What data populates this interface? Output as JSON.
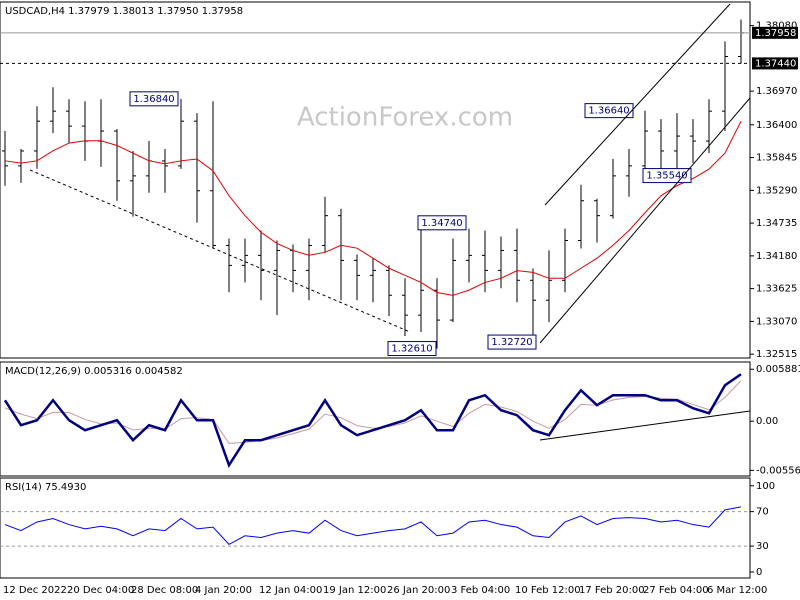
{
  "chart_data": [
    {
      "type": "ohlc",
      "title": "USDCAD,H4 1.37979 1.38013 1.37950 1.37958",
      "watermark": "ActionForex.com",
      "color": "#000000",
      "categories": [
        "12 Dec 2022",
        null,
        null,
        null,
        "20 Dec 04:00",
        null,
        null,
        null,
        "28 Dec 08:00",
        null,
        null,
        null,
        "4 Jan 20:00",
        null,
        null,
        null,
        "12 Jan 04:00",
        null,
        null,
        null,
        "19 Jan 12:00",
        null,
        null,
        null,
        "26 Jan 20:00",
        null,
        null,
        null,
        "3 Feb 04:00",
        null,
        null,
        null,
        "10 Feb 12:00",
        null,
        null,
        null,
        "17 Feb 20:00",
        null,
        null,
        null,
        "27 Feb 04:00",
        null,
        null,
        null,
        "6 Mar 12:00",
        null,
        null
      ],
      "open": [
        1.35957,
        1.35704,
        1.35957,
        1.36462,
        1.36631,
        1.36378,
        1.36125,
        1.36294,
        1.35451,
        1.35535,
        1.35788,
        1.35704,
        1.36462,
        1.35283,
        1.34356,
        1.34019,
        1.34188,
        1.33934,
        1.34272,
        1.33934,
        1.34356,
        1.34861,
        1.34103,
        1.3385,
        1.33934,
        1.33513,
        1.33176,
        1.33597,
        1.33092,
        1.34103,
        1.34188,
        1.33934,
        1.34272,
        1.33766,
        1.33429,
        1.33766,
        1.3444,
        1.35114,
        1.34861,
        1.35535,
        1.35704,
        1.36294,
        1.35957,
        1.36209,
        1.36125,
        1.36631,
        1.37557
      ],
      "high": [
        1.36294,
        1.3599,
        1.36715,
        1.37035,
        1.36833,
        1.36799,
        1.36833,
        1.36327,
        1.35957,
        1.36125,
        1.3599,
        1.3684,
        1.36597,
        1.36799,
        1.34474,
        1.34474,
        1.34609,
        1.3444,
        1.34373,
        1.34474,
        1.35182,
        1.34979,
        1.34204,
        1.34137,
        1.34019,
        1.338,
        1.3474,
        1.338,
        1.34474,
        1.34642,
        1.34609,
        1.34508,
        1.34642,
        1.33968,
        1.34272,
        1.34642,
        1.35384,
        1.35148,
        1.35822,
        1.3599,
        1.3664,
        1.36496,
        1.36597,
        1.36496,
        1.36833,
        1.3781,
        1.38181
      ],
      "low": [
        1.35367,
        1.35417,
        1.35653,
        1.3626,
        1.36091,
        1.35788,
        1.35687,
        1.35114,
        1.34844,
        1.35249,
        1.35249,
        1.35653,
        1.34743,
        1.34305,
        1.33564,
        1.33732,
        1.33429,
        1.33176,
        1.33564,
        1.33429,
        1.34238,
        1.33429,
        1.33429,
        1.33395,
        1.33159,
        1.32822,
        1.3289,
        1.3261,
        1.33058,
        1.33732,
        1.33564,
        1.33631,
        1.33395,
        1.3272,
        1.33058,
        1.33564,
        1.34305,
        1.34406,
        1.34811,
        1.35182,
        1.35586,
        1.3554,
        1.35653,
        1.35754,
        1.35923,
        1.36294,
        1.37439
      ],
      "close": [
        1.35704,
        1.35957,
        1.36462,
        1.36631,
        1.36378,
        1.36125,
        1.36294,
        1.35451,
        1.35535,
        1.35788,
        1.35704,
        1.36462,
        1.35283,
        1.34356,
        1.34019,
        1.34188,
        1.33934,
        1.34272,
        1.33934,
        1.34356,
        1.34861,
        1.34103,
        1.3385,
        1.33934,
        1.33513,
        1.33176,
        1.33597,
        1.33092,
        1.34103,
        1.34188,
        1.33934,
        1.34272,
        1.33766,
        1.33429,
        1.33766,
        1.3444,
        1.35114,
        1.34861,
        1.35535,
        1.35704,
        1.36294,
        1.35957,
        1.36209,
        1.36125,
        1.36631,
        1.37557,
        1.37958
      ],
      "ma": {
        "color": "#e00000",
        "values": [
          1.3579,
          1.3575,
          1.3579,
          1.3596,
          1.3609,
          1.3613,
          1.3613,
          1.3605,
          1.3592,
          1.3579,
          1.3574,
          1.3579,
          1.3582,
          1.3562,
          1.352,
          1.3486,
          1.3458,
          1.3439,
          1.3427,
          1.3419,
          1.3424,
          1.3436,
          1.3431,
          1.3414,
          1.3397,
          1.3385,
          1.3373,
          1.3356,
          1.3351,
          1.336,
          1.3373,
          1.338,
          1.3393,
          1.339,
          1.338,
          1.338,
          1.3397,
          1.3414,
          1.3436,
          1.3461,
          1.3491,
          1.352,
          1.3537,
          1.3549,
          1.3565,
          1.3592,
          1.3646
        ]
      },
      "price_lines": [
        {
          "value": 1.37958,
          "label": "1.37958",
          "style": "solid"
        },
        {
          "value": 1.3744,
          "label": "1.37440",
          "style": "dashed"
        }
      ],
      "annotations": [
        {
          "value": 1.3684,
          "label": "1.36840"
        },
        {
          "value": 1.3474,
          "label": "1.34740"
        },
        {
          "value": 1.3261,
          "label": "1.32610"
        },
        {
          "value": 1.3272,
          "label": "1.32720"
        },
        {
          "value": 1.3664,
          "label": "1.36640"
        },
        {
          "value": 1.3554,
          "label": "1.35540"
        }
      ],
      "ylim": [
        1.3245,
        1.3848
      ],
      "yticks": [
        {
          "value": 1.3808,
          "label": "1.38080"
        },
        {
          "value": 1.3697,
          "label": "1.36970"
        },
        {
          "value": 1.364,
          "label": "1.36400"
        },
        {
          "value": 1.35845,
          "label": "1.35845"
        },
        {
          "value": 1.3529,
          "label": "1.35290"
        },
        {
          "value": 1.34735,
          "label": "1.34735"
        },
        {
          "value": 1.3418,
          "label": "1.34180"
        },
        {
          "value": 1.33625,
          "label": "1.33625"
        },
        {
          "value": 1.3307,
          "label": "1.33070"
        },
        {
          "value": 1.32515,
          "label": "1.32515"
        }
      ]
    },
    {
      "type": "macd",
      "title": "MACD(12,26,9) 0.005316 0.004582",
      "ylim": [
        -0.0062,
        0.0067
      ],
      "yticks": [
        0.005881,
        {
          "value": 0,
          "label": "0.00"
        },
        -0.005562
      ],
      "series": [
        {
          "color": "#000080",
          "values": [
            0.00237,
            -0.00045,
            0.00011,
            0.00237,
            0.00011,
            -0.00102,
            -0.00045,
            0.00011,
            -0.00215,
            -0.00045,
            -0.00102,
            0.00237,
            0.00011,
            0.00011,
            -0.00497,
            -0.00215,
            -0.00215,
            -0.00158,
            -0.00102,
            -0.00045,
            0.00237,
            -0.00045,
            -0.00158,
            -0.00102,
            -0.00045,
            0.00011,
            0.00124,
            -0.00102,
            -0.00102,
            0.00237,
            0.00294,
            0.00124,
            0.00068,
            -0.00102,
            -0.00158,
            0.00124,
            0.0035,
            0.00181,
            0.00294,
            0.00294,
            0.00294,
            0.00237,
            0.00237,
            0.00147,
            0.0009,
            0.00407,
            0.005316
          ]
        },
        {
          "color": "#c89aa0",
          "values": [
            0.0015,
            0.0008,
            0.0003,
            0.001,
            0.001,
            0.0002,
            -0.0003,
            -0.0002,
            -0.001,
            -0.0008,
            -0.0009,
            0.0003,
            0.0004,
            0.0002,
            -0.0025,
            -0.0024,
            -0.0022,
            -0.0019,
            -0.0014,
            -0.0009,
            0.0008,
            0.0004,
            -0.0005,
            -0.0008,
            -0.0006,
            -0.0002,
            0.0006,
            0,
            -0.0006,
            0.0009,
            0.0019,
            0.0016,
            0.0011,
            0,
            -0.0008,
            0.0002,
            0.0019,
            0.0018,
            0.0024,
            0.0027,
            0.0028,
            0.0026,
            0.0025,
            0.0019,
            0.0013,
            0.0027,
            0.004582
          ]
        }
      ]
    },
    {
      "type": "rsi",
      "title": "RSI(14) 75.4930",
      "color": "#0000ff",
      "ylim": [
        -7,
        109
      ],
      "yticks": [
        100,
        70,
        30,
        0
      ],
      "levels": [
        70,
        30
      ],
      "values": [
        55,
        48,
        58,
        62,
        55,
        50,
        53,
        50,
        42,
        50,
        48,
        62,
        50,
        52,
        32,
        42,
        40,
        45,
        48,
        45,
        60,
        48,
        42,
        45,
        48,
        50,
        58,
        42,
        45,
        58,
        60,
        55,
        52,
        42,
        40,
        58,
        65,
        55,
        62,
        63,
        62,
        58,
        60,
        55,
        52,
        72,
        75.493
      ]
    }
  ]
}
